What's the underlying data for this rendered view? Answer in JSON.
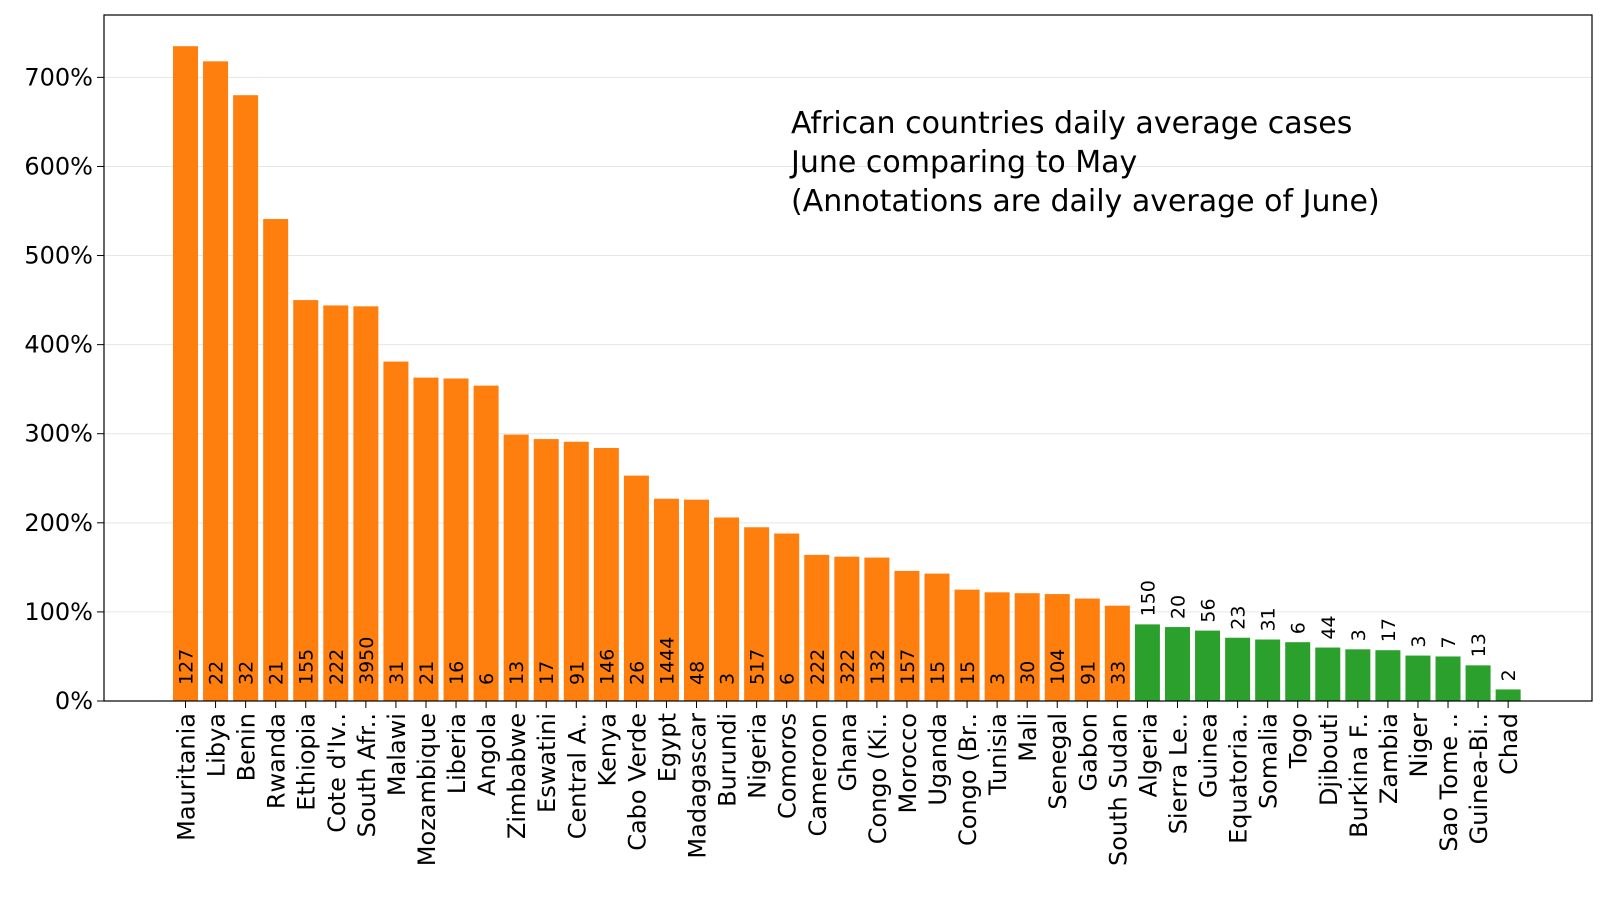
{
  "chart_data": {
    "type": "bar",
    "title_lines": [
      "African countries daily average cases",
      "June comparing to May",
      "(Annotations are daily average of June)"
    ],
    "xlabel": "",
    "ylabel": "",
    "ylim": [
      0,
      770
    ],
    "yticks": [
      0,
      100,
      200,
      300,
      400,
      500,
      600,
      700
    ],
    "ytick_labels": [
      "0%",
      "100%",
      "200%",
      "300%",
      "400%",
      "500%",
      "600%",
      "700%"
    ],
    "grid": "horizontal",
    "colors": {
      "increase": "#ff7f0e",
      "decrease": "#2ca02c"
    },
    "categories": [
      "Mauritania",
      "Libya",
      "Benin",
      "Rwanda",
      "Ethiopia",
      "Cote d'Iv..",
      "South Afr..",
      "Malawi",
      "Mozambique",
      "Liberia",
      "Angola",
      "Zimbabwe",
      "Eswatini",
      "Central A..",
      "Kenya",
      "Cabo Verde",
      "Egypt",
      "Madagascar",
      "Burundi",
      "Nigeria",
      "Comoros",
      "Cameroon",
      "Ghana",
      "Congo (Ki..",
      "Morocco",
      "Uganda",
      "Congo (Br..",
      "Tunisia",
      "Mali",
      "Senegal",
      "Gabon",
      "South Sudan",
      "Algeria",
      "Sierra Le..",
      "Guinea",
      "Equatoria..",
      "Somalia",
      "Togo",
      "Djibouti",
      "Burkina F..",
      "Zambia",
      "Niger",
      "Sao Tome ..",
      "Guinea-Bi..",
      "Chad"
    ],
    "values": [
      735,
      718,
      680,
      541,
      450,
      444,
      443,
      381,
      363,
      362,
      354,
      299,
      294,
      291,
      284,
      253,
      227,
      226,
      206,
      195,
      188,
      164,
      162,
      161,
      146,
      143,
      125,
      122,
      121,
      120,
      115,
      107,
      86,
      83,
      79,
      71,
      69,
      66,
      60,
      58,
      57,
      51,
      50,
      40,
      13
    ],
    "annotations": [
      "127",
      "22",
      "32",
      "21",
      "155",
      "222",
      "3950",
      "31",
      "21",
      "16",
      "6",
      "13",
      "17",
      "91",
      "146",
      "26",
      "1444",
      "48",
      "3",
      "517",
      "6",
      "222",
      "322",
      "132",
      "157",
      "15",
      "15",
      "3",
      "30",
      "104",
      "91",
      "33",
      "150",
      "20",
      "56",
      "23",
      "31",
      "6",
      "44",
      "3",
      "17",
      "3",
      "7",
      "13",
      "2"
    ],
    "bar_colors": [
      "increase",
      "increase",
      "increase",
      "increase",
      "increase",
      "increase",
      "increase",
      "increase",
      "increase",
      "increase",
      "increase",
      "increase",
      "increase",
      "increase",
      "increase",
      "increase",
      "increase",
      "increase",
      "increase",
      "increase",
      "increase",
      "increase",
      "increase",
      "increase",
      "increase",
      "increase",
      "increase",
      "increase",
      "increase",
      "increase",
      "increase",
      "increase",
      "decrease",
      "decrease",
      "decrease",
      "decrease",
      "decrease",
      "decrease",
      "decrease",
      "decrease",
      "decrease",
      "decrease",
      "decrease",
      "decrease",
      "decrease"
    ]
  }
}
